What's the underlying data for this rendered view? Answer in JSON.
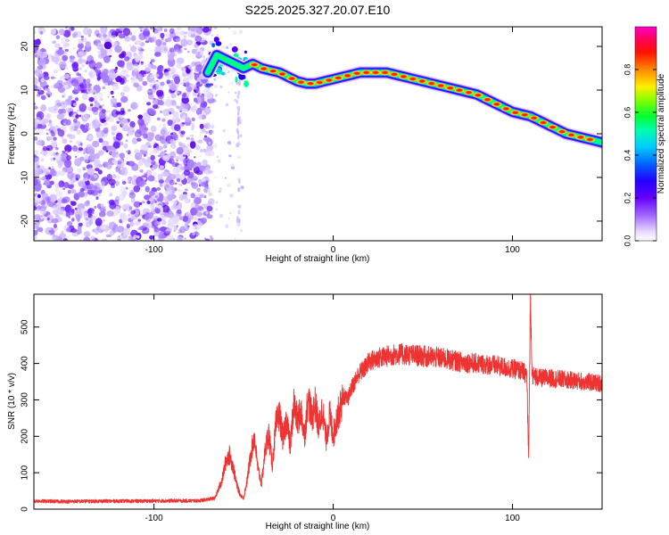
{
  "title": "S225.2025.327.20.07.E10",
  "chart_data": [
    {
      "type": "heatmap",
      "xlabel": "Height of straight line (km)",
      "ylabel": "Frequency (Hz)",
      "xlim": [
        -167,
        150
      ],
      "ylim": [
        -24.5,
        24.5
      ],
      "x_ticks": [
        -100,
        0,
        100
      ],
      "x_tick_labels": [
        "-100",
        "0",
        "100"
      ],
      "y_ticks": [
        -20,
        -10,
        0,
        10,
        20
      ],
      "y_tick_labels": [
        "-20",
        "-10",
        "0",
        "10",
        "20"
      ],
      "noise_region_x": [
        -167,
        -68
      ],
      "ridge": {
        "x": [
          -70,
          -65,
          -60,
          -55,
          -50,
          -45,
          -40,
          -35,
          -30,
          -25,
          -20,
          -15,
          -10,
          -5,
          0,
          5,
          10,
          15,
          20,
          25,
          30,
          35,
          40,
          45,
          50,
          55,
          60,
          65,
          70,
          75,
          80,
          85,
          90,
          95,
          100,
          105,
          110,
          115,
          120,
          125,
          130,
          135,
          140,
          145,
          150
        ],
        "frequency": [
          14,
          18,
          17,
          16,
          15,
          16,
          15,
          14.5,
          14,
          13,
          12,
          11.5,
          11.5,
          12,
          12.5,
          13,
          13.5,
          14,
          14,
          14,
          14,
          13.5,
          13,
          12.5,
          12,
          11.5,
          11,
          10.5,
          10,
          9.5,
          9,
          8,
          7,
          6,
          5,
          4.5,
          4,
          3,
          2,
          1,
          0,
          -0.5,
          -1,
          -1.5,
          -2
        ]
      },
      "colorbar": {
        "label": "Normalized spectral amplitude",
        "range": [
          0,
          1
        ],
        "ticks": [
          0.0,
          0.2,
          0.4,
          0.6,
          0.8
        ],
        "tick_labels": [
          "0.0",
          "0.2",
          "0.4",
          "0.6",
          "0.8"
        ],
        "colors": [
          "#ffffff",
          "#d9c8ff",
          "#6600ff",
          "#0044ff",
          "#00e6ff",
          "#00ff66",
          "#ccff00",
          "#ff8800",
          "#ff0000",
          "#ff00aa"
        ]
      }
    },
    {
      "type": "line",
      "xlabel": "Height of straight line (km)",
      "ylabel": "SNR (10 * v/v)",
      "xlim": [
        -167,
        150
      ],
      "ylim": [
        0,
        590
      ],
      "x_ticks": [
        -100,
        0,
        100
      ],
      "x_tick_labels": [
        "-100",
        "0",
        "100"
      ],
      "y_ticks": [
        0,
        100,
        200,
        300,
        400,
        500
      ],
      "y_tick_labels": [
        "0",
        "100",
        "200",
        "300",
        "400",
        "500"
      ],
      "series": [
        {
          "name": "SNR",
          "color": "#ee3333",
          "x": [
            -167,
            -150,
            -130,
            -110,
            -90,
            -75,
            -66,
            -62,
            -60,
            -58,
            -56,
            -54,
            -52,
            -50,
            -48,
            -46,
            -44,
            -42,
            -40,
            -38,
            -36,
            -34,
            -32,
            -30,
            -28,
            -26,
            -24,
            -22,
            -20,
            -18,
            -16,
            -14,
            -12,
            -10,
            -8,
            -6,
            -4,
            -2,
            0,
            2,
            4,
            6,
            8,
            10,
            12,
            14,
            16,
            18,
            20,
            25,
            30,
            35,
            40,
            50,
            60,
            70,
            80,
            90,
            100,
            105,
            108,
            109,
            110,
            111,
            112,
            115,
            120,
            130,
            140,
            150
          ],
          "values": [
            22,
            21,
            22,
            22,
            23,
            23,
            30,
            80,
            130,
            150,
            120,
            70,
            40,
            30,
            80,
            150,
            200,
            110,
            70,
            160,
            210,
            120,
            230,
            260,
            190,
            250,
            170,
            290,
            240,
            270,
            200,
            310,
            250,
            290,
            220,
            280,
            190,
            260,
            200,
            250,
            280,
            310,
            300,
            330,
            350,
            370,
            380,
            390,
            405,
            415,
            420,
            425,
            425,
            420,
            415,
            405,
            400,
            395,
            385,
            380,
            370,
            130,
            580,
            370,
            365,
            360,
            360,
            355,
            350,
            345
          ]
        }
      ]
    }
  ]
}
